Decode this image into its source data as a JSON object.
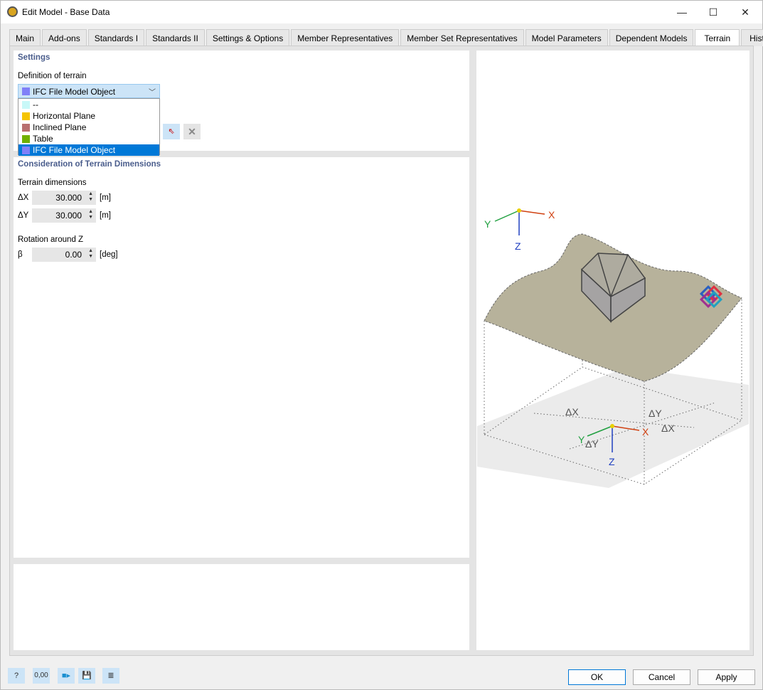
{
  "window": {
    "title": "Edit Model - Base Data"
  },
  "tabs": [
    "Main",
    "Add-ons",
    "Standards I",
    "Standards II",
    "Settings & Options",
    "Member Representatives",
    "Member Set Representatives",
    "Model Parameters",
    "Dependent Models",
    "Terrain",
    "History"
  ],
  "active_tab": "Terrain",
  "settings": {
    "heading": "Settings",
    "definition_label": "Definition of terrain",
    "selected": "IFC File Model Object",
    "options": [
      {
        "label": "--",
        "color": "#c8f8f8"
      },
      {
        "label": "Horizontal Plane",
        "color": "#f5c400"
      },
      {
        "label": "Inclined Plane",
        "color": "#b87070"
      },
      {
        "label": "Table",
        "color": "#70b000"
      },
      {
        "label": "IFC File Model Object",
        "color": "#8080f8"
      }
    ]
  },
  "dimensions": {
    "heading": "Consideration of Terrain Dimensions",
    "terrain_label": "Terrain dimensions",
    "dx_label": "ΔX",
    "dx_value": "30.000",
    "dx_unit": "[m]",
    "dy_label": "ΔY",
    "dy_value": "30.000",
    "dy_unit": "[m]",
    "rotation_label": "Rotation around Z",
    "beta_label": "β",
    "beta_value": "0.00",
    "beta_unit": "[deg]"
  },
  "diagram": {
    "x": "X",
    "y": "Y",
    "z": "Z",
    "dx": "ΔX",
    "dy": "ΔY"
  },
  "footer": {
    "ok": "OK",
    "cancel": "Cancel",
    "apply": "Apply",
    "decimal_icon_text": "0,00"
  }
}
